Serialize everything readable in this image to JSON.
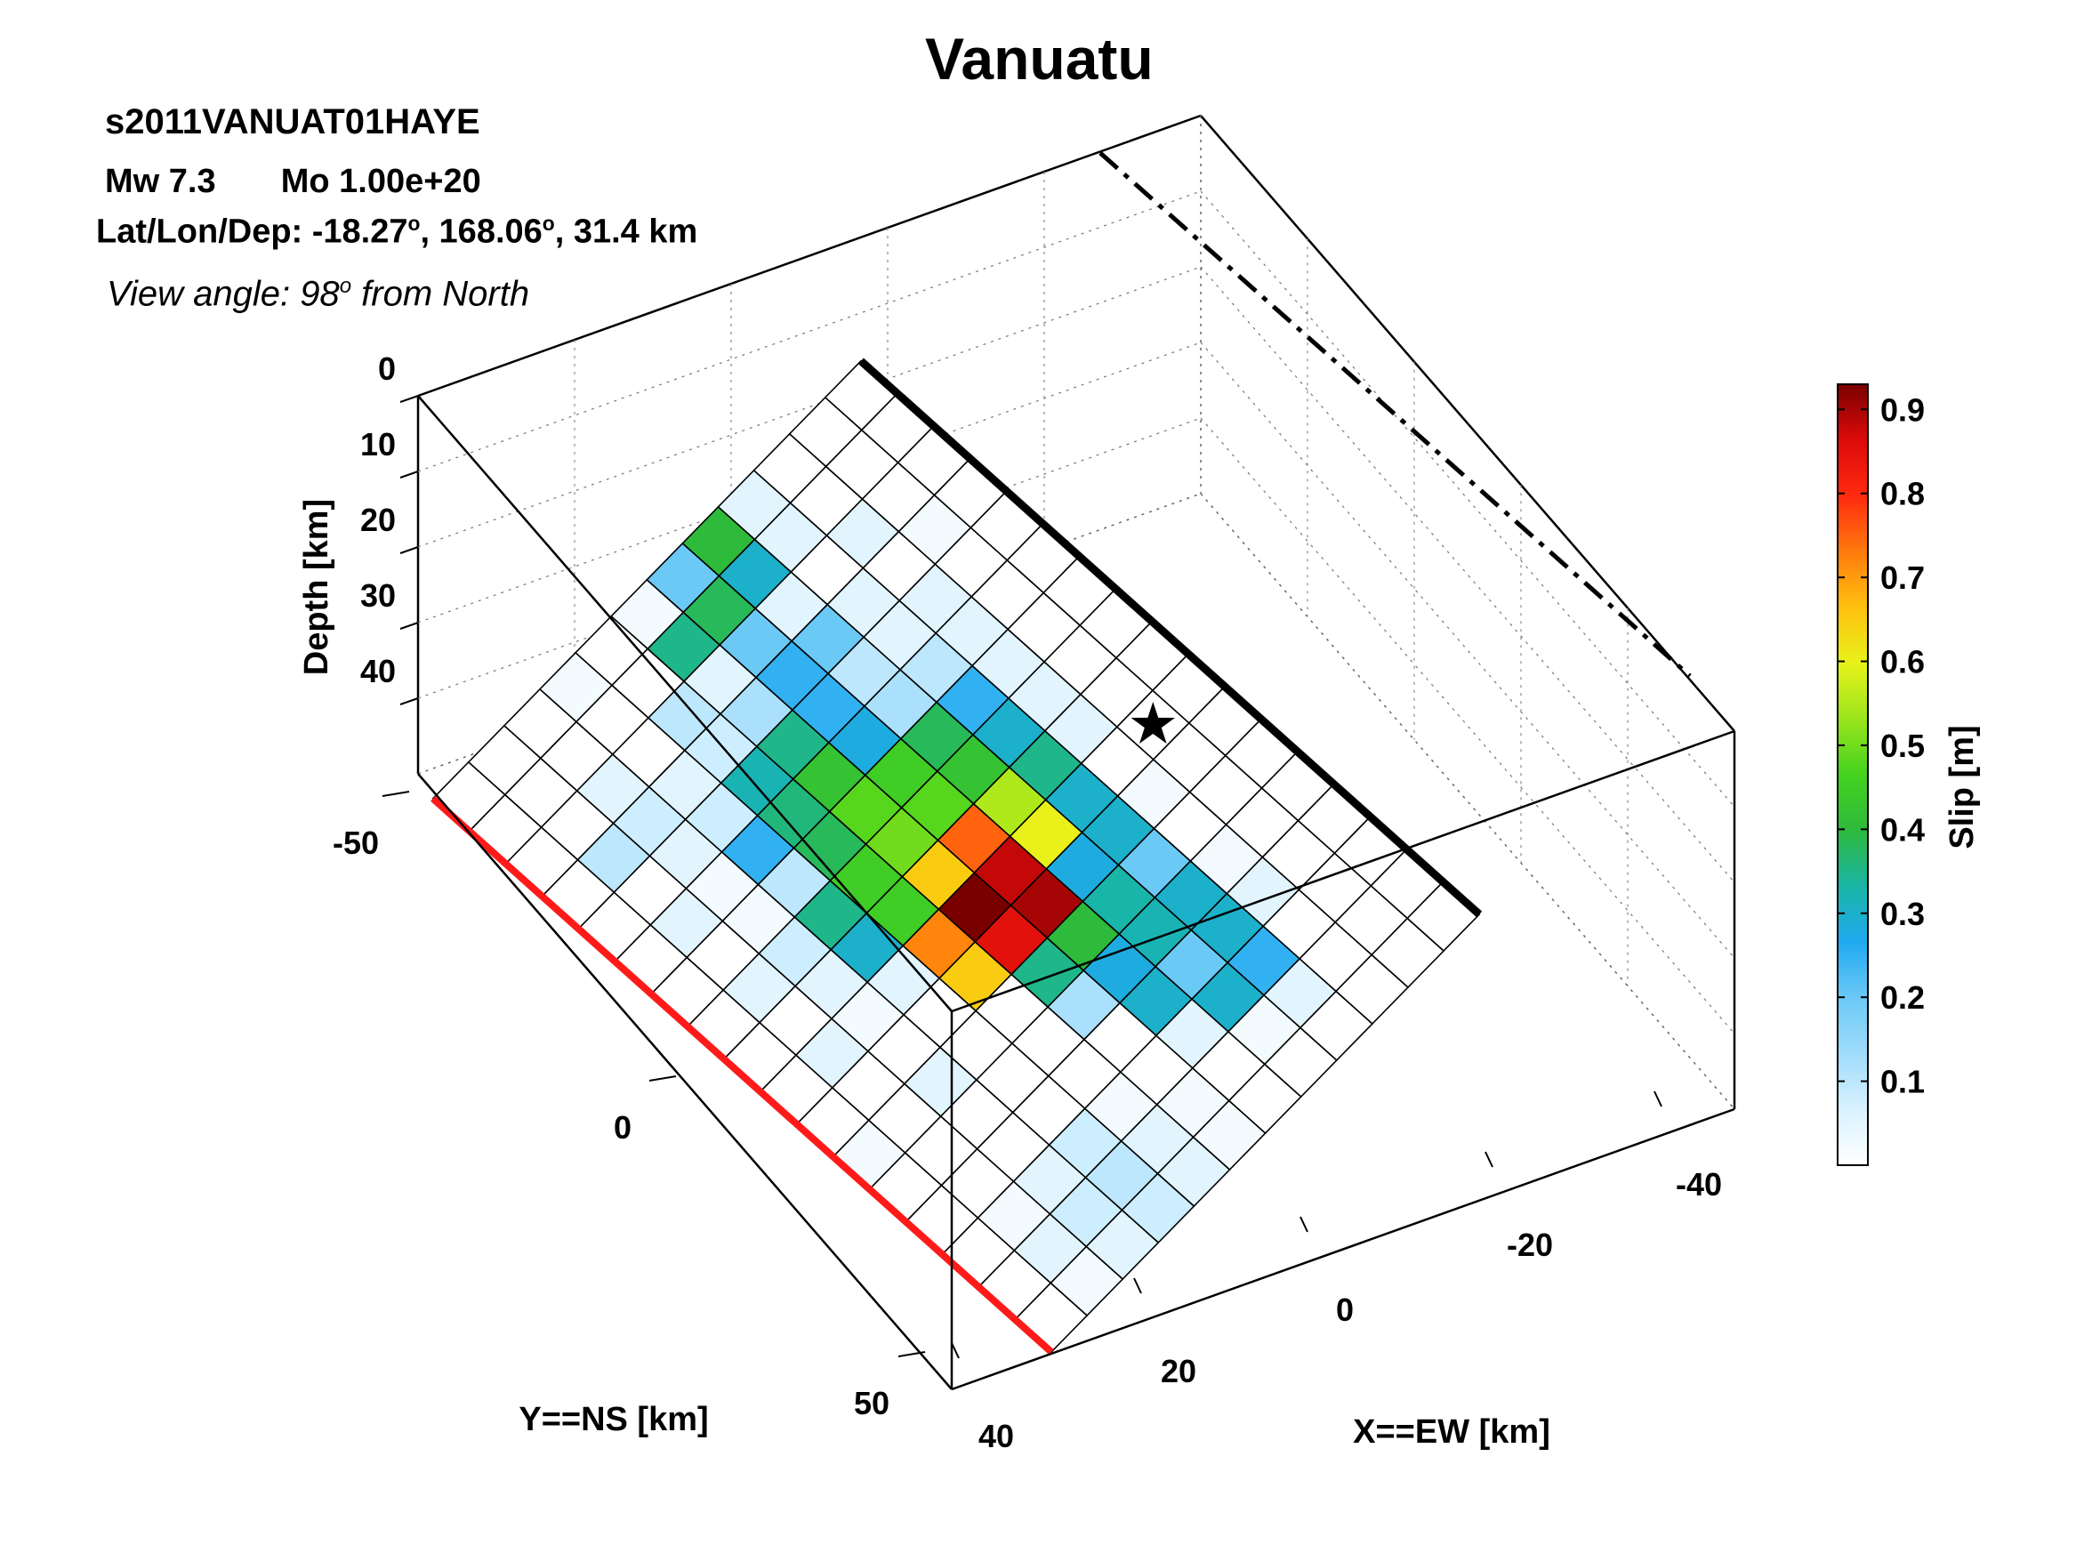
{
  "header": {
    "title": "Vanuatu",
    "event_id": "s2011VANUAT01HAYE",
    "mw_label": "Mw 7.3",
    "mo_label": "Mo 1.00e+20",
    "location_prefix": "Lat/Lon/Dep: -18.27",
    "lon_text": ", 168.06",
    "depth_text": ", 31.4 km",
    "degree_symbol": "o",
    "view_prefix": "View angle:  98",
    "view_suffix": " from North"
  },
  "colors": {
    "trench_line": "#ff1a1a",
    "fault_top_edge": "#000000",
    "grid_line": "#000000",
    "colormap": [
      "#ffffff",
      "#d9f2ff",
      "#9fdcfb",
      "#6cc9f6",
      "#1faaf0",
      "#19b5a6",
      "#2eba3c",
      "#44d21f",
      "#9ae51c",
      "#e8f21a",
      "#ffc10f",
      "#ff7a0d",
      "#ff2a0f",
      "#dc0a0a",
      "#7a0000"
    ]
  },
  "chart_data": {
    "type": "heatmap",
    "title": "Vanuatu",
    "zlabel": "Depth [km]",
    "ylabel": "Y==NS [km]",
    "xlabel": "X==EW [km]",
    "colorbar_label": "Slip [m]",
    "depth_ticks": [
      "0",
      "10",
      "20",
      "30",
      "40"
    ],
    "y_ticks": [
      "-50",
      "0",
      "50"
    ],
    "x_ticks": [
      "40",
      "20",
      "0",
      "-20",
      "-40"
    ],
    "colorbar_ticks": [
      "0.9",
      "0.8",
      "0.7",
      "0.6",
      "0.5",
      "0.4",
      "0.3",
      "0.2",
      "0.1"
    ],
    "colorbar_range": [
      0,
      0.93
    ],
    "hypocenter": {
      "row": 7.5,
      "col": 10.5
    },
    "view_angle_deg": 98,
    "n_strike": 17,
    "n_dip": 12,
    "slip": [
      [
        0.0,
        0.02,
        0.05,
        0.08,
        0.05,
        0.02,
        0.0,
        0.0,
        0.0,
        0.0,
        0.0,
        0.0
      ],
      [
        0.0,
        0.05,
        0.08,
        0.1,
        0.05,
        0.02,
        0.0,
        0.02,
        0.05,
        0.0,
        0.0,
        0.0
      ],
      [
        0.0,
        0.02,
        0.05,
        0.08,
        0.02,
        0.0,
        0.05,
        0.3,
        0.25,
        0.0,
        0.0,
        0.0
      ],
      [
        0.0,
        0.0,
        0.0,
        0.0,
        0.0,
        0.0,
        0.3,
        0.2,
        0.3,
        0.05,
        0.0,
        0.0
      ],
      [
        0.0,
        0.0,
        0.0,
        0.0,
        0.0,
        0.12,
        0.28,
        0.32,
        0.3,
        0.02,
        0.0,
        0.0
      ],
      [
        0.02,
        0.0,
        0.05,
        0.0,
        0.0,
        0.35,
        0.4,
        0.33,
        0.2,
        0.0,
        0.0,
        0.0
      ],
      [
        0.0,
        0.0,
        0.0,
        0.0,
        0.65,
        0.85,
        0.9,
        0.28,
        0.3,
        0.02,
        0.0,
        0.0
      ],
      [
        0.0,
        0.05,
        0.02,
        0.05,
        0.72,
        0.93,
        0.88,
        0.6,
        0.3,
        0.0,
        0.0,
        0.0
      ],
      [
        0.0,
        0.0,
        0.05,
        0.3,
        0.45,
        0.65,
        0.75,
        0.55,
        0.35,
        0.05,
        0.0,
        0.0
      ],
      [
        0.0,
        0.05,
        0.08,
        0.35,
        0.45,
        0.5,
        0.48,
        0.42,
        0.3,
        0.05,
        0.0,
        0.0
      ],
      [
        0.0,
        0.0,
        0.02,
        0.1,
        0.38,
        0.48,
        0.45,
        0.38,
        0.25,
        0.05,
        0.0,
        0.0
      ],
      [
        0.0,
        0.05,
        0.02,
        0.25,
        0.36,
        0.42,
        0.28,
        0.12,
        0.1,
        0.05,
        0.0,
        0.0
      ],
      [
        0.0,
        0.0,
        0.05,
        0.08,
        0.32,
        0.35,
        0.25,
        0.1,
        0.05,
        0.05,
        0.0,
        0.0
      ],
      [
        0.0,
        0.1,
        0.08,
        0.05,
        0.08,
        0.12,
        0.25,
        0.2,
        0.05,
        0.0,
        0.02,
        0.0
      ],
      [
        0.0,
        0.0,
        0.05,
        0.0,
        0.1,
        0.05,
        0.2,
        0.05,
        0.0,
        0.05,
        0.0,
        0.0
      ],
      [
        0.0,
        0.0,
        0.0,
        0.0,
        0.0,
        0.35,
        0.38,
        0.3,
        0.05,
        0.0,
        0.0,
        0.0
      ],
      [
        0.0,
        0.0,
        0.0,
        0.02,
        0.0,
        0.02,
        0.2,
        0.4,
        0.05,
        0.0,
        0.0,
        0.0
      ]
    ]
  }
}
